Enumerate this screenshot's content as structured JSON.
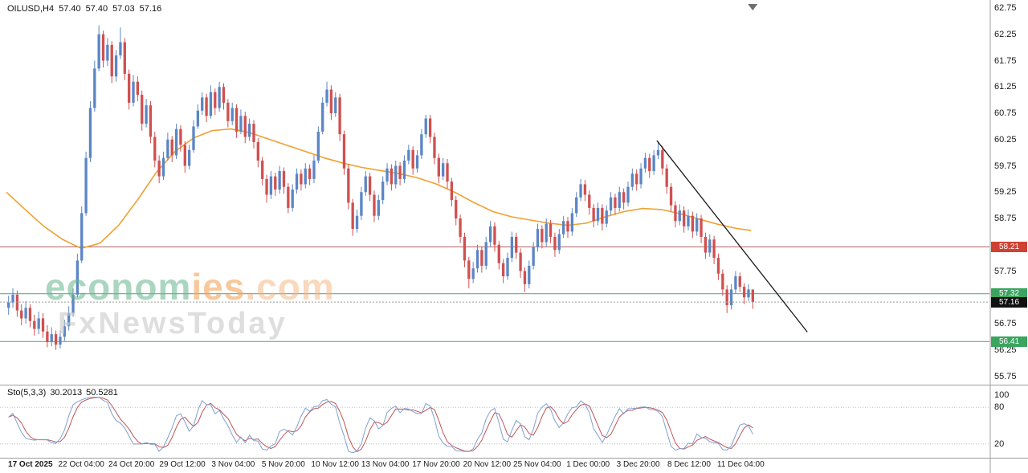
{
  "header": {
    "title": "OILUSD,H4",
    "open": "57.40",
    "high": "57.40",
    "low": "57.03",
    "close": "57.16"
  },
  "watermark": {
    "brand_primary": "econom",
    "brand_secondary": "ies",
    "brand_suffix": ".com",
    "subtitle": "FxNewsToday"
  },
  "chart_data": {
    "type": "candlestick",
    "symbol": "OILUSD",
    "timeframe": "H4",
    "title": "OILUSD,H4",
    "up_color": "#5b86c5",
    "down_color": "#d05050",
    "y_axis": {
      "visible_min": 55.6,
      "visible_max": 62.85,
      "tick_step": 0.5,
      "tick_labels": [
        "62.75",
        "62.25",
        "61.75",
        "61.25",
        "60.75",
        "60.25",
        "59.75",
        "59.25",
        "58.75",
        "57.75",
        "56.75",
        "56.25",
        "55.75"
      ]
    },
    "x_axis": {
      "labels": [
        {
          "text": "17 Oct 2025",
          "x": 0.032,
          "bold": true
        },
        {
          "text": "22 Oct 04:00",
          "x": 0.1
        },
        {
          "text": "24 Oct 20:00",
          "x": 0.167
        },
        {
          "text": "29 Oct 12:00",
          "x": 0.235
        },
        {
          "text": "3 Nov 04:00",
          "x": 0.303
        },
        {
          "text": "5 Nov 20:00",
          "x": 0.37
        },
        {
          "text": "10 Nov 12:00",
          "x": 0.439
        },
        {
          "text": "13 Nov 04:00",
          "x": 0.506
        },
        {
          "text": "17 Nov 20:00",
          "x": 0.574
        },
        {
          "text": "20 Nov 12:00",
          "x": 0.642
        },
        {
          "text": "25 Nov 04:00",
          "x": 0.709
        },
        {
          "text": "1 Dec 00:00",
          "x": 0.777
        },
        {
          "text": "3 Dec 20:00",
          "x": 0.844
        },
        {
          "text": "8 Dec 12:00",
          "x": 0.912
        },
        {
          "text": "11 Dec 04:00",
          "x": 0.981
        }
      ]
    },
    "levels": [
      {
        "price": 58.21,
        "label": "58.21",
        "line_color": "#b35f5f",
        "tag_color": "#cf4232",
        "line_style": "solid",
        "role": "resistance"
      },
      {
        "price": 57.32,
        "label": "57.32",
        "line_color": "#5fae90",
        "tag_color": "#3ba45f",
        "line_style": "solid",
        "role": "support"
      },
      {
        "price": 56.41,
        "label": "56.41",
        "line_color": "#5fae90",
        "tag_color": "#3ba45f",
        "line_style": "solid",
        "role": "support"
      },
      {
        "price": 57.16,
        "label": "57.16",
        "line_color": "#9a9a9a",
        "tag_color": "#111111",
        "line_style": "dotted",
        "role": "current-price"
      }
    ],
    "trendline": {
      "color": "#1a1a1a",
      "points": [
        {
          "x": 0.869,
          "price": 60.23
        },
        {
          "x": 1.07,
          "price": 56.59
        }
      ]
    },
    "moving_average": {
      "color": "#f0a030",
      "points": [
        [
          0.0,
          59.25
        ],
        [
          0.025,
          58.92
        ],
        [
          0.05,
          58.6
        ],
        [
          0.075,
          58.35
        ],
        [
          0.1,
          58.18
        ],
        [
          0.125,
          58.28
        ],
        [
          0.15,
          58.62
        ],
        [
          0.175,
          59.1
        ],
        [
          0.2,
          59.62
        ],
        [
          0.225,
          60.02
        ],
        [
          0.25,
          60.28
        ],
        [
          0.275,
          60.42
        ],
        [
          0.3,
          60.45
        ],
        [
          0.325,
          60.38
        ],
        [
          0.35,
          60.26
        ],
        [
          0.375,
          60.14
        ],
        [
          0.4,
          60.02
        ],
        [
          0.425,
          59.9
        ],
        [
          0.45,
          59.8
        ],
        [
          0.475,
          59.72
        ],
        [
          0.5,
          59.66
        ],
        [
          0.525,
          59.6
        ],
        [
          0.55,
          59.52
        ],
        [
          0.575,
          59.4
        ],
        [
          0.6,
          59.24
        ],
        [
          0.625,
          59.05
        ],
        [
          0.65,
          58.88
        ],
        [
          0.675,
          58.78
        ],
        [
          0.7,
          58.72
        ],
        [
          0.725,
          58.66
        ],
        [
          0.75,
          58.62
        ],
        [
          0.775,
          58.66
        ],
        [
          0.8,
          58.78
        ],
        [
          0.825,
          58.88
        ],
        [
          0.85,
          58.94
        ],
        [
          0.875,
          58.92
        ],
        [
          0.9,
          58.84
        ],
        [
          0.925,
          58.74
        ],
        [
          0.95,
          58.64
        ],
        [
          0.975,
          58.56
        ],
        [
          0.995,
          58.52
        ]
      ]
    },
    "stochastic": {
      "label": "Sto(5,3,3)",
      "params": [
        5,
        3,
        3
      ],
      "main_value_text": "30.2013",
      "signal_value_text": "50.5281",
      "main_color": "#7fa0d0",
      "signal_color": "#c05555",
      "level_lines": [
        20,
        80
      ],
      "range": [
        0,
        100
      ],
      "axis_labels": [
        100,
        80,
        20
      ]
    },
    "shift_marker_x": 0.997,
    "shift_marker_color": "#6e6e6e",
    "candles": [
      [
        57.05,
        57.28,
        56.92,
        57.15
      ],
      [
        57.15,
        57.42,
        57.05,
        57.3
      ],
      [
        57.3,
        57.38,
        56.88,
        57.0
      ],
      [
        57.0,
        57.12,
        56.72,
        56.85
      ],
      [
        56.85,
        57.18,
        56.75,
        57.05
      ],
      [
        57.05,
        57.12,
        56.68,
        56.8
      ],
      [
        56.8,
        56.92,
        56.52,
        56.65
      ],
      [
        56.65,
        56.98,
        56.55,
        56.85
      ],
      [
        56.85,
        56.95,
        56.48,
        56.6
      ],
      [
        56.6,
        56.72,
        56.3,
        56.4
      ],
      [
        56.4,
        56.68,
        56.32,
        56.55
      ],
      [
        56.55,
        56.62,
        56.25,
        56.35
      ],
      [
        56.35,
        56.62,
        56.28,
        56.5
      ],
      [
        56.5,
        56.82,
        56.42,
        56.7
      ],
      [
        56.7,
        57.08,
        56.62,
        56.95
      ],
      [
        56.95,
        57.42,
        56.88,
        57.3
      ],
      [
        57.3,
        58.08,
        57.25,
        57.95
      ],
      [
        57.95,
        58.98,
        57.9,
        58.85
      ],
      [
        58.85,
        60.02,
        58.8,
        59.9
      ],
      [
        59.9,
        60.98,
        59.82,
        60.85
      ],
      [
        60.85,
        61.75,
        60.78,
        61.6
      ],
      [
        61.6,
        62.42,
        61.55,
        62.25
      ],
      [
        62.25,
        62.32,
        61.62,
        61.75
      ],
      [
        61.75,
        62.18,
        61.65,
        62.05
      ],
      [
        62.05,
        62.12,
        61.32,
        61.45
      ],
      [
        61.45,
        61.95,
        61.35,
        61.85
      ],
      [
        61.85,
        62.38,
        61.78,
        62.1
      ],
      [
        62.1,
        62.18,
        61.38,
        61.5
      ],
      [
        61.5,
        61.58,
        60.82,
        60.95
      ],
      [
        60.95,
        61.48,
        60.88,
        61.35
      ],
      [
        61.35,
        61.45,
        60.98,
        61.1
      ],
      [
        61.1,
        61.18,
        60.42,
        60.55
      ],
      [
        60.55,
        61.02,
        60.48,
        60.9
      ],
      [
        60.9,
        60.98,
        60.18,
        60.3
      ],
      [
        60.3,
        60.4,
        59.72,
        59.85
      ],
      [
        59.85,
        59.95,
        59.42,
        59.55
      ],
      [
        59.55,
        60.02,
        59.48,
        59.9
      ],
      [
        59.9,
        60.38,
        59.85,
        60.25
      ],
      [
        60.25,
        60.32,
        59.82,
        59.95
      ],
      [
        59.95,
        60.55,
        59.88,
        60.45
      ],
      [
        60.45,
        60.52,
        60.02,
        60.15
      ],
      [
        60.15,
        60.22,
        59.62,
        59.75
      ],
      [
        59.75,
        60.15,
        59.68,
        60.05
      ],
      [
        60.05,
        60.62,
        60.0,
        60.5
      ],
      [
        60.5,
        60.92,
        60.45,
        60.8
      ],
      [
        60.8,
        61.15,
        60.72,
        61.05
      ],
      [
        61.05,
        61.12,
        60.58,
        60.7
      ],
      [
        60.7,
        61.28,
        60.65,
        61.15
      ],
      [
        61.15,
        61.22,
        60.72,
        60.85
      ],
      [
        60.85,
        61.35,
        60.78,
        61.25
      ],
      [
        61.25,
        61.32,
        60.82,
        60.95
      ],
      [
        60.95,
        61.02,
        60.48,
        60.6
      ],
      [
        60.6,
        60.95,
        60.52,
        60.85
      ],
      [
        60.85,
        60.92,
        60.28,
        60.4
      ],
      [
        60.4,
        60.82,
        60.35,
        60.7
      ],
      [
        60.7,
        60.78,
        60.18,
        60.3
      ],
      [
        60.3,
        60.65,
        60.22,
        60.55
      ],
      [
        60.55,
        60.62,
        60.08,
        60.2
      ],
      [
        60.2,
        60.28,
        59.72,
        59.85
      ],
      [
        59.85,
        59.92,
        59.38,
        59.5
      ],
      [
        59.5,
        59.58,
        59.05,
        59.2
      ],
      [
        59.2,
        59.65,
        59.12,
        59.55
      ],
      [
        59.55,
        59.62,
        59.18,
        59.3
      ],
      [
        59.3,
        59.75,
        59.22,
        59.65
      ],
      [
        59.65,
        59.72,
        59.22,
        59.35
      ],
      [
        59.35,
        59.42,
        58.85,
        58.95
      ],
      [
        58.95,
        59.4,
        58.88,
        59.3
      ],
      [
        59.3,
        59.7,
        59.22,
        59.6
      ],
      [
        59.6,
        59.68,
        59.28,
        59.4
      ],
      [
        59.4,
        59.8,
        59.32,
        59.7
      ],
      [
        59.7,
        59.78,
        59.38,
        59.5
      ],
      [
        59.5,
        59.95,
        59.42,
        59.85
      ],
      [
        59.85,
        60.5,
        59.8,
        60.4
      ],
      [
        60.4,
        61.05,
        60.35,
        60.95
      ],
      [
        60.95,
        61.35,
        60.88,
        61.2
      ],
      [
        61.2,
        61.28,
        60.62,
        60.75
      ],
      [
        60.75,
        61.15,
        60.68,
        61.05
      ],
      [
        61.05,
        61.12,
        60.22,
        60.35
      ],
      [
        60.35,
        60.42,
        59.58,
        59.7
      ],
      [
        59.7,
        59.78,
        58.92,
        59.05
      ],
      [
        59.05,
        59.12,
        58.42,
        58.55
      ],
      [
        58.55,
        58.92,
        58.48,
        58.8
      ],
      [
        58.8,
        59.35,
        58.72,
        59.25
      ],
      [
        59.25,
        59.65,
        59.18,
        59.55
      ],
      [
        59.55,
        59.62,
        59.08,
        59.2
      ],
      [
        59.2,
        59.28,
        58.68,
        58.8
      ],
      [
        58.8,
        59.2,
        58.72,
        59.1
      ],
      [
        59.1,
        59.55,
        59.02,
        59.45
      ],
      [
        59.45,
        59.8,
        59.38,
        59.7
      ],
      [
        59.7,
        59.78,
        59.28,
        59.4
      ],
      [
        59.4,
        59.85,
        59.32,
        59.75
      ],
      [
        59.75,
        59.82,
        59.38,
        59.5
      ],
      [
        59.5,
        59.95,
        59.42,
        59.85
      ],
      [
        59.85,
        60.15,
        59.78,
        60.05
      ],
      [
        60.05,
        60.12,
        59.58,
        59.7
      ],
      [
        59.7,
        60.05,
        59.62,
        59.95
      ],
      [
        59.95,
        60.45,
        59.88,
        60.35
      ],
      [
        60.35,
        60.72,
        60.28,
        60.65
      ],
      [
        60.65,
        60.72,
        60.18,
        60.3
      ],
      [
        60.3,
        60.38,
        59.78,
        59.9
      ],
      [
        59.9,
        59.98,
        59.42,
        59.55
      ],
      [
        59.55,
        59.9,
        59.48,
        59.8
      ],
      [
        59.8,
        59.88,
        59.32,
        59.45
      ],
      [
        59.45,
        59.52,
        58.98,
        59.1
      ],
      [
        59.1,
        59.18,
        58.62,
        58.75
      ],
      [
        58.75,
        58.82,
        58.28,
        58.4
      ],
      [
        58.4,
        58.48,
        57.82,
        57.95
      ],
      [
        57.95,
        58.02,
        57.42,
        57.6
      ],
      [
        57.6,
        57.92,
        57.52,
        57.8
      ],
      [
        57.8,
        58.25,
        57.72,
        58.15
      ],
      [
        58.15,
        58.22,
        57.72,
        57.85
      ],
      [
        57.85,
        58.4,
        57.78,
        58.3
      ],
      [
        58.3,
        58.7,
        58.22,
        58.6
      ],
      [
        58.6,
        58.68,
        58.12,
        58.25
      ],
      [
        58.25,
        58.32,
        57.78,
        57.9
      ],
      [
        57.9,
        57.98,
        57.52,
        57.65
      ],
      [
        57.65,
        58.1,
        57.58,
        58.0
      ],
      [
        58.0,
        58.5,
        57.92,
        58.4
      ],
      [
        58.4,
        58.48,
        57.98,
        58.1
      ],
      [
        58.1,
        58.18,
        57.62,
        57.75
      ],
      [
        57.75,
        57.82,
        57.35,
        57.5
      ],
      [
        57.5,
        57.95,
        57.42,
        57.85
      ],
      [
        57.85,
        58.3,
        57.78,
        58.2
      ],
      [
        58.2,
        58.65,
        58.12,
        58.55
      ],
      [
        58.55,
        58.62,
        58.18,
        58.3
      ],
      [
        58.3,
        58.75,
        58.22,
        58.65
      ],
      [
        58.65,
        58.72,
        58.28,
        58.4
      ],
      [
        58.4,
        58.48,
        58.02,
        58.15
      ],
      [
        58.15,
        58.55,
        58.08,
        58.45
      ],
      [
        58.45,
        58.8,
        58.38,
        58.7
      ],
      [
        58.7,
        58.78,
        58.38,
        58.5
      ],
      [
        58.5,
        58.95,
        58.42,
        58.85
      ],
      [
        58.85,
        59.25,
        58.78,
        59.15
      ],
      [
        59.15,
        59.5,
        59.08,
        59.4
      ],
      [
        59.4,
        59.48,
        59.08,
        59.2
      ],
      [
        59.2,
        59.28,
        58.82,
        58.95
      ],
      [
        58.95,
        59.02,
        58.58,
        58.7
      ],
      [
        58.7,
        59.05,
        58.62,
        58.95
      ],
      [
        58.95,
        59.02,
        58.52,
        58.65
      ],
      [
        58.65,
        59.0,
        58.58,
        58.9
      ],
      [
        58.9,
        59.25,
        58.82,
        59.15
      ],
      [
        59.15,
        59.22,
        58.82,
        58.95
      ],
      [
        58.95,
        59.35,
        58.88,
        59.25
      ],
      [
        59.25,
        59.32,
        58.92,
        59.05
      ],
      [
        59.05,
        59.45,
        58.98,
        59.35
      ],
      [
        59.35,
        59.7,
        59.28,
        59.6
      ],
      [
        59.6,
        59.68,
        59.28,
        59.4
      ],
      [
        59.4,
        59.8,
        59.32,
        59.7
      ],
      [
        59.7,
        60.0,
        59.62,
        59.9
      ],
      [
        59.9,
        59.98,
        59.52,
        59.65
      ],
      [
        59.65,
        60.05,
        59.58,
        59.95
      ],
      [
        59.95,
        60.22,
        59.88,
        60.05
      ],
      [
        60.05,
        60.12,
        59.58,
        59.7
      ],
      [
        59.7,
        59.78,
        59.22,
        59.35
      ],
      [
        59.35,
        59.42,
        58.88,
        59.0
      ],
      [
        59.0,
        59.08,
        58.58,
        58.7
      ],
      [
        58.7,
        59.02,
        58.62,
        58.9
      ],
      [
        58.9,
        58.98,
        58.48,
        58.6
      ],
      [
        58.6,
        58.92,
        58.52,
        58.8
      ],
      [
        58.8,
        58.88,
        58.38,
        58.5
      ],
      [
        58.5,
        58.85,
        58.42,
        58.75
      ],
      [
        58.75,
        58.82,
        58.28,
        58.4
      ],
      [
        58.4,
        58.48,
        57.98,
        58.1
      ],
      [
        58.1,
        58.45,
        58.02,
        58.35
      ],
      [
        58.35,
        58.42,
        57.88,
        58.0
      ],
      [
        58.0,
        58.08,
        57.58,
        57.7
      ],
      [
        57.7,
        57.78,
        57.28,
        57.4
      ],
      [
        57.4,
        57.48,
        56.95,
        57.1
      ],
      [
        57.1,
        57.5,
        57.02,
        57.4
      ],
      [
        57.4,
        57.75,
        57.32,
        57.65
      ],
      [
        57.65,
        57.72,
        57.35,
        57.45
      ],
      [
        57.45,
        57.52,
        57.12,
        57.25
      ],
      [
        57.25,
        57.5,
        57.18,
        57.4
      ],
      [
        57.4,
        57.4,
        57.03,
        57.16
      ]
    ]
  }
}
